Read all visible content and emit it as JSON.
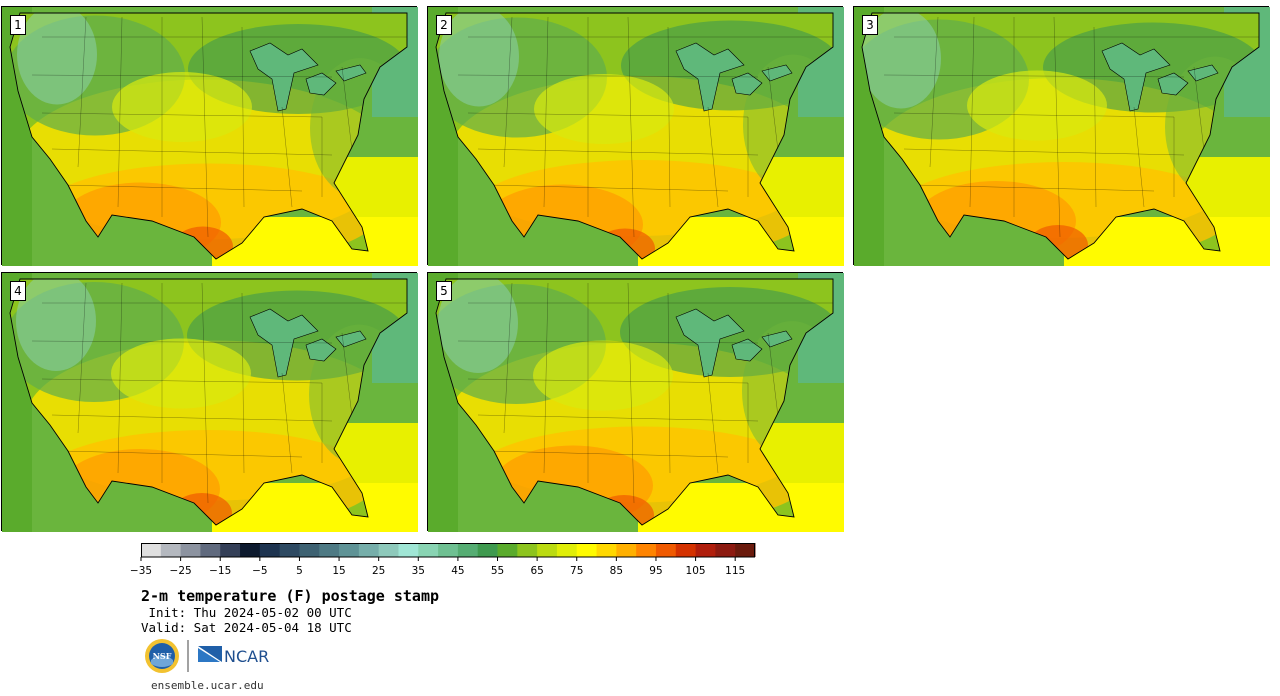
{
  "panels": [
    {
      "label": "1"
    },
    {
      "label": "2"
    },
    {
      "label": "3"
    },
    {
      "label": "4"
    },
    {
      "label": "5"
    }
  ],
  "colorbar": {
    "colors": [
      "#e0e0e0",
      "#b4b8bf",
      "#8c93a0",
      "#606a7e",
      "#343f57",
      "#0d1a2e",
      "#1e3450",
      "#2e4a62",
      "#3e6272",
      "#4e7a84",
      "#5f9396",
      "#76aeaa",
      "#8ec9bb",
      "#a0e6d5",
      "#89d4b3",
      "#6fc092",
      "#56ad73",
      "#3f9a4f",
      "#5aab2c",
      "#8dc41e",
      "#bbdb11",
      "#e0ee08",
      "#fffb00",
      "#ffd800",
      "#ffb000",
      "#ff8400",
      "#f05a00",
      "#d43200",
      "#b01e0c",
      "#8c1a10",
      "#6a1a0c"
    ],
    "ticks": [
      "−35",
      "−25",
      "−15",
      "−5",
      "5",
      "15",
      "25",
      "35",
      "45",
      "55",
      "65",
      "75",
      "85",
      "95",
      "105",
      "115"
    ]
  },
  "title": "2-m temperature (F) postage stamp",
  "init": " Init: Thu 2024-05-02 00 UTC",
  "valid": "Valid: Sat 2024-05-04 18 UTC",
  "logos": {
    "nsf": "NSF",
    "ncar": "NCAR"
  },
  "site": "ensemble.ucar.edu"
}
